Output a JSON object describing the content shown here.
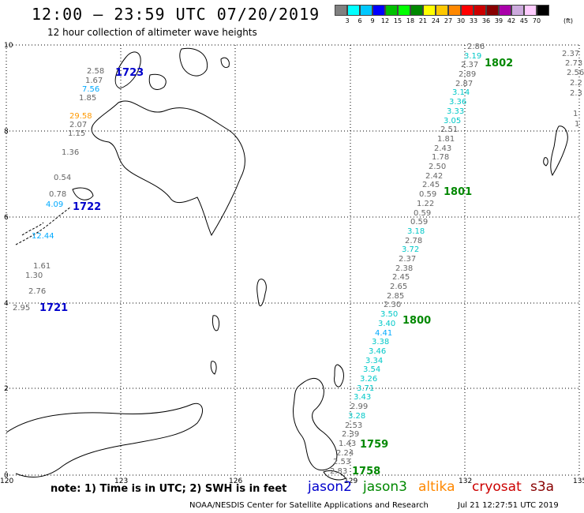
{
  "header": {
    "title": "12:00 – 23:59 UTC 07/20/2019",
    "subtitle": "12 hour collection of altimeter wave heights"
  },
  "legend": {
    "colors": [
      "#808080",
      "#00ffff",
      "#00c8ff",
      "#0000ff",
      "#00c000",
      "#00ff00",
      "#008800",
      "#ffff00",
      "#ffc800",
      "#ff8800",
      "#ff0000",
      "#cc0000",
      "#880000",
      "#aa00aa",
      "#ccaadd",
      "#ffccff",
      "#000000"
    ],
    "labels": [
      "3",
      "6",
      "9",
      "12",
      "15",
      "18",
      "21",
      "24",
      "27",
      "30",
      "33",
      "36",
      "39",
      "42",
      "45",
      "70"
    ],
    "unit": "(ft)"
  },
  "axes": {
    "lon_ticks": [
      "120",
      "123",
      "126",
      "129",
      "132",
      "135"
    ],
    "lat_ticks": [
      "0",
      "2",
      "4",
      "6",
      "8",
      "10"
    ]
  },
  "passes": [
    {
      "time": "1723",
      "satellite": "jason2",
      "color": "#0000cc"
    },
    {
      "time": "1722",
      "satellite": "jason2",
      "color": "#0000cc"
    },
    {
      "time": "1721",
      "satellite": "jason2",
      "color": "#0000cc"
    },
    {
      "time": "1802",
      "satellite": "jason3",
      "color": "#008800"
    },
    {
      "time": "1801",
      "satellite": "jason3",
      "color": "#008800"
    },
    {
      "time": "1800",
      "satellite": "jason3",
      "color": "#008800"
    },
    {
      "time": "1759",
      "satellite": "jason3",
      "color": "#008800"
    },
    {
      "time": "1758",
      "satellite": "jason3",
      "color": "#008800"
    }
  ],
  "observations_west": [
    "2.58",
    "1.67",
    "7.56",
    "1.85",
    "29.58",
    "2.07",
    "1.15",
    "1.36",
    "0.54",
    "0.78",
    "4.09",
    "12.44",
    "1.61",
    "1.30",
    "2.76",
    "2.95"
  ],
  "observations_east": [
    "2.86",
    "3.19",
    "2.37",
    "2.89",
    "2.87",
    "3.14",
    "3.36",
    "3.33",
    "3.05",
    "2.51",
    "1.81",
    "2.43",
    "1.78",
    "2.50",
    "2.42",
    "2.45",
    "0.59",
    "1.22",
    "0.59",
    "0.59",
    "3.18",
    "2.78",
    "3.72",
    "2.37",
    "2.38",
    "2.45",
    "2.65",
    "2.85",
    "2.30",
    "3.50",
    "3.40",
    "4.41",
    "3.38",
    "3.46",
    "3.34",
    "3.54",
    "3.26",
    "3.71",
    "3.43",
    "2.99",
    "3.28",
    "2.53",
    "2.39",
    "1.43",
    "2.24",
    "2.53",
    "2.83"
  ],
  "observations_edge": [
    "2.37",
    "2.73",
    "2.56",
    "2.2",
    "2.3",
    "1",
    "1"
  ],
  "footer": {
    "note": "note:  1) Time is in UTC;  2) SWH is in feet",
    "sat_names": [
      "jason2",
      "jason3",
      "altika",
      "cryosat",
      "s3a"
    ],
    "sat_colors": [
      "#0000cc",
      "#008800",
      "#ff8800",
      "#cc0000",
      "#880000"
    ],
    "credit": "NOAA/NESDIS Center for Satellite Applications and Research",
    "timestamp": "Jul 21 12:27:51 UTC 2019"
  }
}
